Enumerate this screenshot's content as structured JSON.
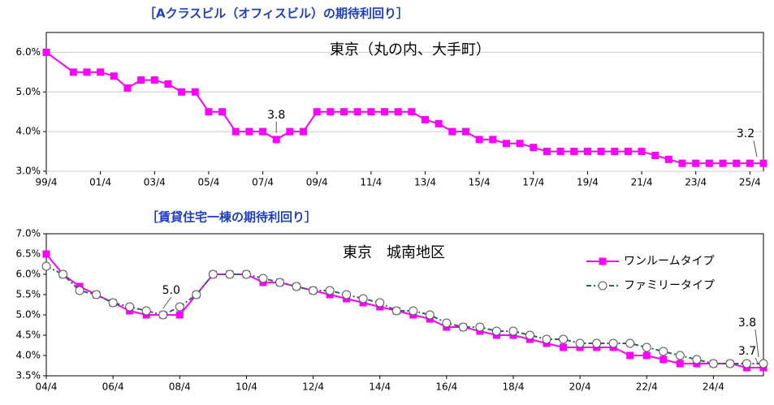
{
  "chart_data": [
    {
      "type": "line",
      "heading": "［Aクラスビル（オフィスビル）の期待利回り］",
      "title": "東京（丸の内、大手町）",
      "x": [
        1999.25,
        2000.25,
        2000.75,
        2001.25,
        2001.75,
        2002.25,
        2002.75,
        2003.25,
        2003.75,
        2004.25,
        2004.75,
        2005.25,
        2005.75,
        2006.25,
        2006.75,
        2007.25,
        2007.75,
        2008.25,
        2008.75,
        2009.25,
        2009.75,
        2010.25,
        2010.75,
        2011.25,
        2011.75,
        2012.25,
        2012.75,
        2013.25,
        2013.75,
        2014.25,
        2014.75,
        2015.25,
        2015.75,
        2016.25,
        2016.75,
        2017.25,
        2017.75,
        2018.25,
        2018.75,
        2019.25,
        2019.75,
        2020.25,
        2020.75,
        2021.25,
        2021.75,
        2022.25,
        2022.75,
        2023.25,
        2023.75,
        2024.25,
        2024.75,
        2025.25,
        2025.75
      ],
      "series": [
        {
          "name": null,
          "color": "#ff00ff",
          "marker": "square",
          "values": [
            6.0,
            5.5,
            5.5,
            5.5,
            5.4,
            5.1,
            5.3,
            5.3,
            5.2,
            5.0,
            5.0,
            4.5,
            4.5,
            4.0,
            4.0,
            4.0,
            3.8,
            4.0,
            4.0,
            4.5,
            4.5,
            4.5,
            4.5,
            4.5,
            4.5,
            4.5,
            4.5,
            4.3,
            4.2,
            4.0,
            4.0,
            3.8,
            3.8,
            3.7,
            3.7,
            3.6,
            3.5,
            3.5,
            3.5,
            3.5,
            3.5,
            3.5,
            3.5,
            3.5,
            3.4,
            3.3,
            3.2,
            3.2,
            3.2,
            3.2,
            3.2,
            3.2,
            3.2
          ]
        }
      ],
      "xlim": [
        1999.25,
        2025.75
      ],
      "xticks": [
        {
          "value": 1999.25,
          "label": "99/4"
        },
        {
          "value": 2001.25,
          "label": "01/4"
        },
        {
          "value": 2003.25,
          "label": "03/4"
        },
        {
          "value": 2005.25,
          "label": "05/4"
        },
        {
          "value": 2007.25,
          "label": "07/4"
        },
        {
          "value": 2009.25,
          "label": "09/4"
        },
        {
          "value": 2011.25,
          "label": "11/4"
        },
        {
          "value": 2013.25,
          "label": "13/4"
        },
        {
          "value": 2015.25,
          "label": "15/4"
        },
        {
          "value": 2017.25,
          "label": "17/4"
        },
        {
          "value": 2019.25,
          "label": "19/4"
        },
        {
          "value": 2021.25,
          "label": "21/4"
        },
        {
          "value": 2023.25,
          "label": "23/4"
        },
        {
          "value": 2025.25,
          "label": "25/4"
        }
      ],
      "ylim": [
        3.0,
        6.5
      ],
      "yticks": [
        {
          "value": 3,
          "label": "3.0%"
        },
        {
          "value": 4,
          "label": "4.0%"
        },
        {
          "value": 5,
          "label": "5.0%"
        },
        {
          "value": 6,
          "label": "6.0%"
        }
      ],
      "grid": true,
      "annotations": [
        {
          "text": "3.8",
          "x": 2007.75,
          "y": 3.8
        },
        {
          "text": "3.2",
          "x": 2025.75,
          "y": 3.2
        }
      ]
    },
    {
      "type": "line",
      "heading": "［賃貸住宅一棟の期待利回り］",
      "title": "東京　城南地区",
      "x": [
        2004.25,
        2004.75,
        2005.25,
        2005.75,
        2006.25,
        2006.75,
        2007.25,
        2007.75,
        2008.25,
        2008.75,
        2009.25,
        2009.75,
        2010.25,
        2010.75,
        2011.25,
        2011.75,
        2012.25,
        2012.75,
        2013.25,
        2013.75,
        2014.25,
        2014.75,
        2015.25,
        2015.75,
        2016.25,
        2016.75,
        2017.25,
        2017.75,
        2018.25,
        2018.75,
        2019.25,
        2019.75,
        2020.25,
        2020.75,
        2021.25,
        2021.75,
        2022.25,
        2022.75,
        2023.25,
        2023.75,
        2024.25,
        2024.75,
        2025.25,
        2025.75
      ],
      "series": [
        {
          "name": "ワンルームタイプ",
          "color": "#ff00ff",
          "marker": "square",
          "values": [
            6.5,
            6.0,
            5.7,
            5.5,
            5.3,
            5.1,
            5.0,
            5.0,
            5.0,
            5.5,
            6.0,
            6.0,
            6.0,
            5.8,
            5.8,
            5.7,
            5.6,
            5.5,
            5.4,
            5.3,
            5.2,
            5.1,
            5.0,
            4.9,
            4.7,
            4.7,
            4.6,
            4.5,
            4.5,
            4.4,
            4.3,
            4.2,
            4.2,
            4.2,
            4.2,
            4.0,
            4.0,
            3.9,
            3.8,
            3.8,
            3.8,
            3.8,
            3.7,
            3.7
          ]
        },
        {
          "name": "ファミリータイプ",
          "color": "#2f6464",
          "marker": "circle",
          "dashed": true,
          "values": [
            6.2,
            6.0,
            5.6,
            5.5,
            5.3,
            5.2,
            5.1,
            5.0,
            5.2,
            5.5,
            6.0,
            6.0,
            6.0,
            5.9,
            5.8,
            5.7,
            5.6,
            5.6,
            5.5,
            5.4,
            5.3,
            5.1,
            5.1,
            5.0,
            4.8,
            4.7,
            4.7,
            4.6,
            4.6,
            4.5,
            4.4,
            4.4,
            4.3,
            4.3,
            4.3,
            4.3,
            4.2,
            4.1,
            4.0,
            3.9,
            3.8,
            3.8,
            3.8,
            3.8
          ]
        }
      ],
      "xlim": [
        2004.25,
        2025.75
      ],
      "xticks": [
        {
          "value": 2004.25,
          "label": "04/4"
        },
        {
          "value": 2006.25,
          "label": "06/4"
        },
        {
          "value": 2008.25,
          "label": "08/4"
        },
        {
          "value": 2010.25,
          "label": "10/4"
        },
        {
          "value": 2012.25,
          "label": "12/4"
        },
        {
          "value": 2014.25,
          "label": "14/4"
        },
        {
          "value": 2016.25,
          "label": "16/4"
        },
        {
          "value": 2018.25,
          "label": "18/4"
        },
        {
          "value": 2020.25,
          "label": "20/4"
        },
        {
          "value": 2022.25,
          "label": "22/4"
        },
        {
          "value": 2024.25,
          "label": "24/4"
        }
      ],
      "ylim": [
        3.5,
        7.0
      ],
      "yticks": [
        {
          "value": 3.5,
          "label": "3.5%"
        },
        {
          "value": 4,
          "label": "4.0%"
        },
        {
          "value": 4.5,
          "label": "4.5%"
        },
        {
          "value": 5,
          "label": "5.0%"
        },
        {
          "value": 5.5,
          "label": "5.5%"
        },
        {
          "value": 6,
          "label": "6.0%"
        },
        {
          "value": 6.5,
          "label": "6.5%"
        },
        {
          "value": 7,
          "label": "7.0%"
        }
      ],
      "grid": false,
      "legend": "top-right",
      "annotations": [
        {
          "text": "5.0",
          "x": 2007.75,
          "y": 5.0
        },
        {
          "text": "3.8",
          "x": 2025.75,
          "y": 3.8
        },
        {
          "text": "3.7",
          "x": 2025.75,
          "y": 3.7
        }
      ]
    }
  ]
}
